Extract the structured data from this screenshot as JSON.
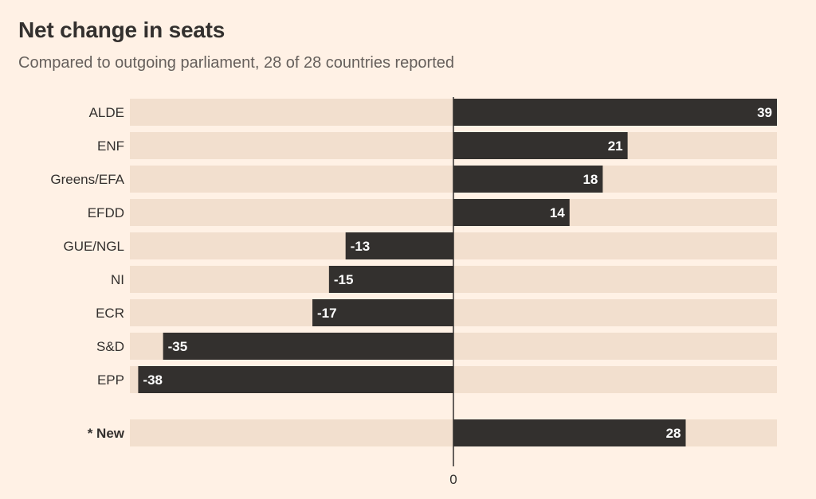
{
  "header": {
    "title": "Net change in seats",
    "subtitle": "Compared to outgoing parliament, 28 of 28 countries reported"
  },
  "colors": {
    "background": "#fff1e5",
    "track": "#f2dfce",
    "bar": "#33302e",
    "value_text": "#ffffff",
    "axis": "#33302e"
  },
  "chart_data": {
    "type": "bar",
    "orientation": "horizontal",
    "title": "Net change in seats",
    "subtitle": "Compared to outgoing parliament, 28 of 28 countries reported",
    "categories": [
      "ALDE",
      "ENF",
      "Greens/EFA",
      "EFDD",
      "GUE/NGL",
      "NI",
      "ECR",
      "S&D",
      "EPP",
      "* New"
    ],
    "values": [
      39,
      21,
      18,
      14,
      -13,
      -15,
      -17,
      -35,
      -38,
      28
    ],
    "bold_categories": [
      "* New"
    ],
    "xlim": [
      -39,
      39
    ],
    "x_ticks": [
      0
    ],
    "grid": false
  }
}
